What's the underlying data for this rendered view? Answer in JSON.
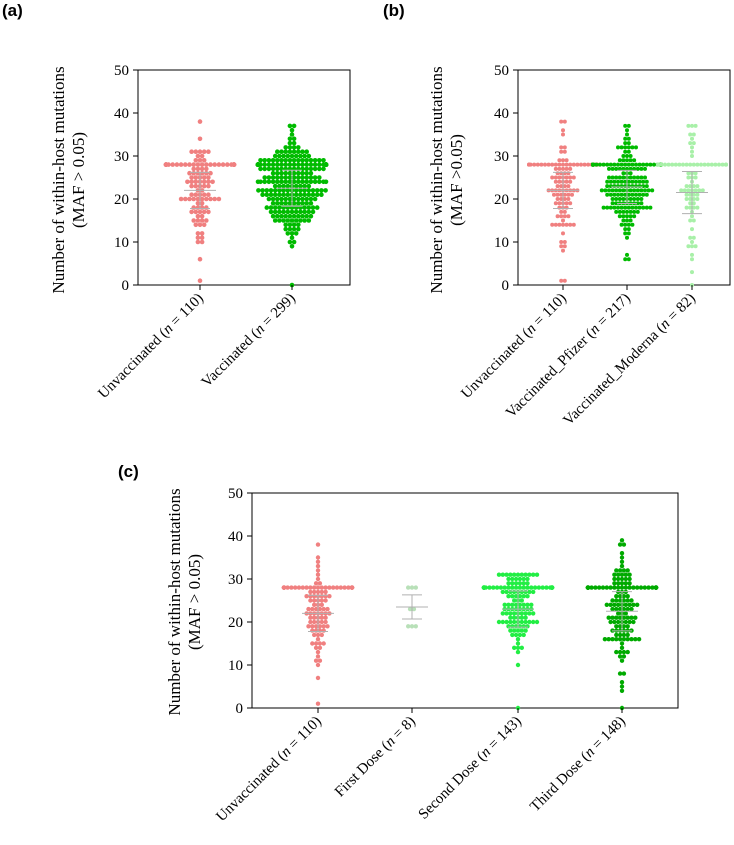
{
  "chart_data": [
    {
      "panel": "(a)",
      "type": "scatter",
      "ylabel": "Number of within-host mutations",
      "ylabel2": "(MAF > 0.05)",
      "ylim": [
        0,
        50
      ],
      "yticks": [
        "0",
        "10",
        "20",
        "30",
        "40",
        "50"
      ],
      "categories": [
        {
          "prefix": "Unvaccinated (",
          "n": "n",
          "suffix": " = 110)",
          "count": 110,
          "color": "#f08080",
          "mean": 22.0,
          "sd": 6.0,
          "mode": 28,
          "max": 38,
          "min": 1
        },
        {
          "prefix": "Vaccinated (",
          "n": "n",
          "suffix": " = 299)",
          "count": 299,
          "color": "#00bb00",
          "mean": 22.5,
          "sd": 6.0,
          "mode": 28,
          "max": 37,
          "min": 0
        }
      ]
    },
    {
      "panel": "(b)",
      "type": "scatter",
      "ylabel": "Number of within-host mutations",
      "ylabel2": "(MAF >0.05)",
      "ylim": [
        0,
        50
      ],
      "yticks": [
        "0",
        "10",
        "20",
        "30",
        "40",
        "50"
      ],
      "categories": [
        {
          "prefix": "Unvaccinated (",
          "n": "n",
          "suffix": " = 110)",
          "count": 110,
          "color": "#f08080",
          "mean": 22.0,
          "sd": 6.0,
          "mode": 28,
          "max": 38,
          "min": 1
        },
        {
          "prefix": "Vaccinated_Pfizer (",
          "n": "n",
          "suffix": " = 217)",
          "count": 217,
          "color": "#00bb00",
          "mean": 22.8,
          "sd": 5.5,
          "mode": 28,
          "max": 37,
          "min": 6
        },
        {
          "prefix": "Vaccinated_Moderna (",
          "n": "n",
          "suffix": " = 82)",
          "count": 82,
          "color": "#a8f0a8",
          "mean": 21.5,
          "sd": 7.0,
          "mode": 28,
          "max": 37,
          "min": 0
        }
      ]
    },
    {
      "panel": "(c)",
      "type": "scatter",
      "ylabel": "Number of within-host mutations",
      "ylabel2": "(MAF > 0.05)",
      "ylim": [
        0,
        50
      ],
      "yticks": [
        "0",
        "10",
        "20",
        "30",
        "40",
        "50"
      ],
      "categories": [
        {
          "prefix": "Unvaccinated (",
          "n": "n",
          "suffix": " = 110)",
          "count": 110,
          "color": "#f08080",
          "mean": 22.0,
          "sd": 6.0,
          "mode": 28,
          "max": 38,
          "min": 1
        },
        {
          "prefix": "First Dose (",
          "n": "n",
          "suffix": " = 8)",
          "count": 8,
          "color": "#b8e0b8",
          "mean": 23.5,
          "sd": 4.0,
          "mode": 28,
          "max": 28,
          "min": 19
        },
        {
          "prefix": "Second Dose (",
          "n": "n",
          "suffix": " = 143)",
          "count": 143,
          "color": "#22ee44",
          "mean": 23.0,
          "sd": 6.0,
          "mode": 28,
          "max": 31,
          "min": 0
        },
        {
          "prefix": "Third Dose (",
          "n": "n",
          "suffix": " = 148)",
          "count": 148,
          "color": "#00aa00",
          "mean": 22.5,
          "sd": 6.5,
          "mode": 28,
          "max": 39,
          "min": 0
        }
      ]
    }
  ]
}
